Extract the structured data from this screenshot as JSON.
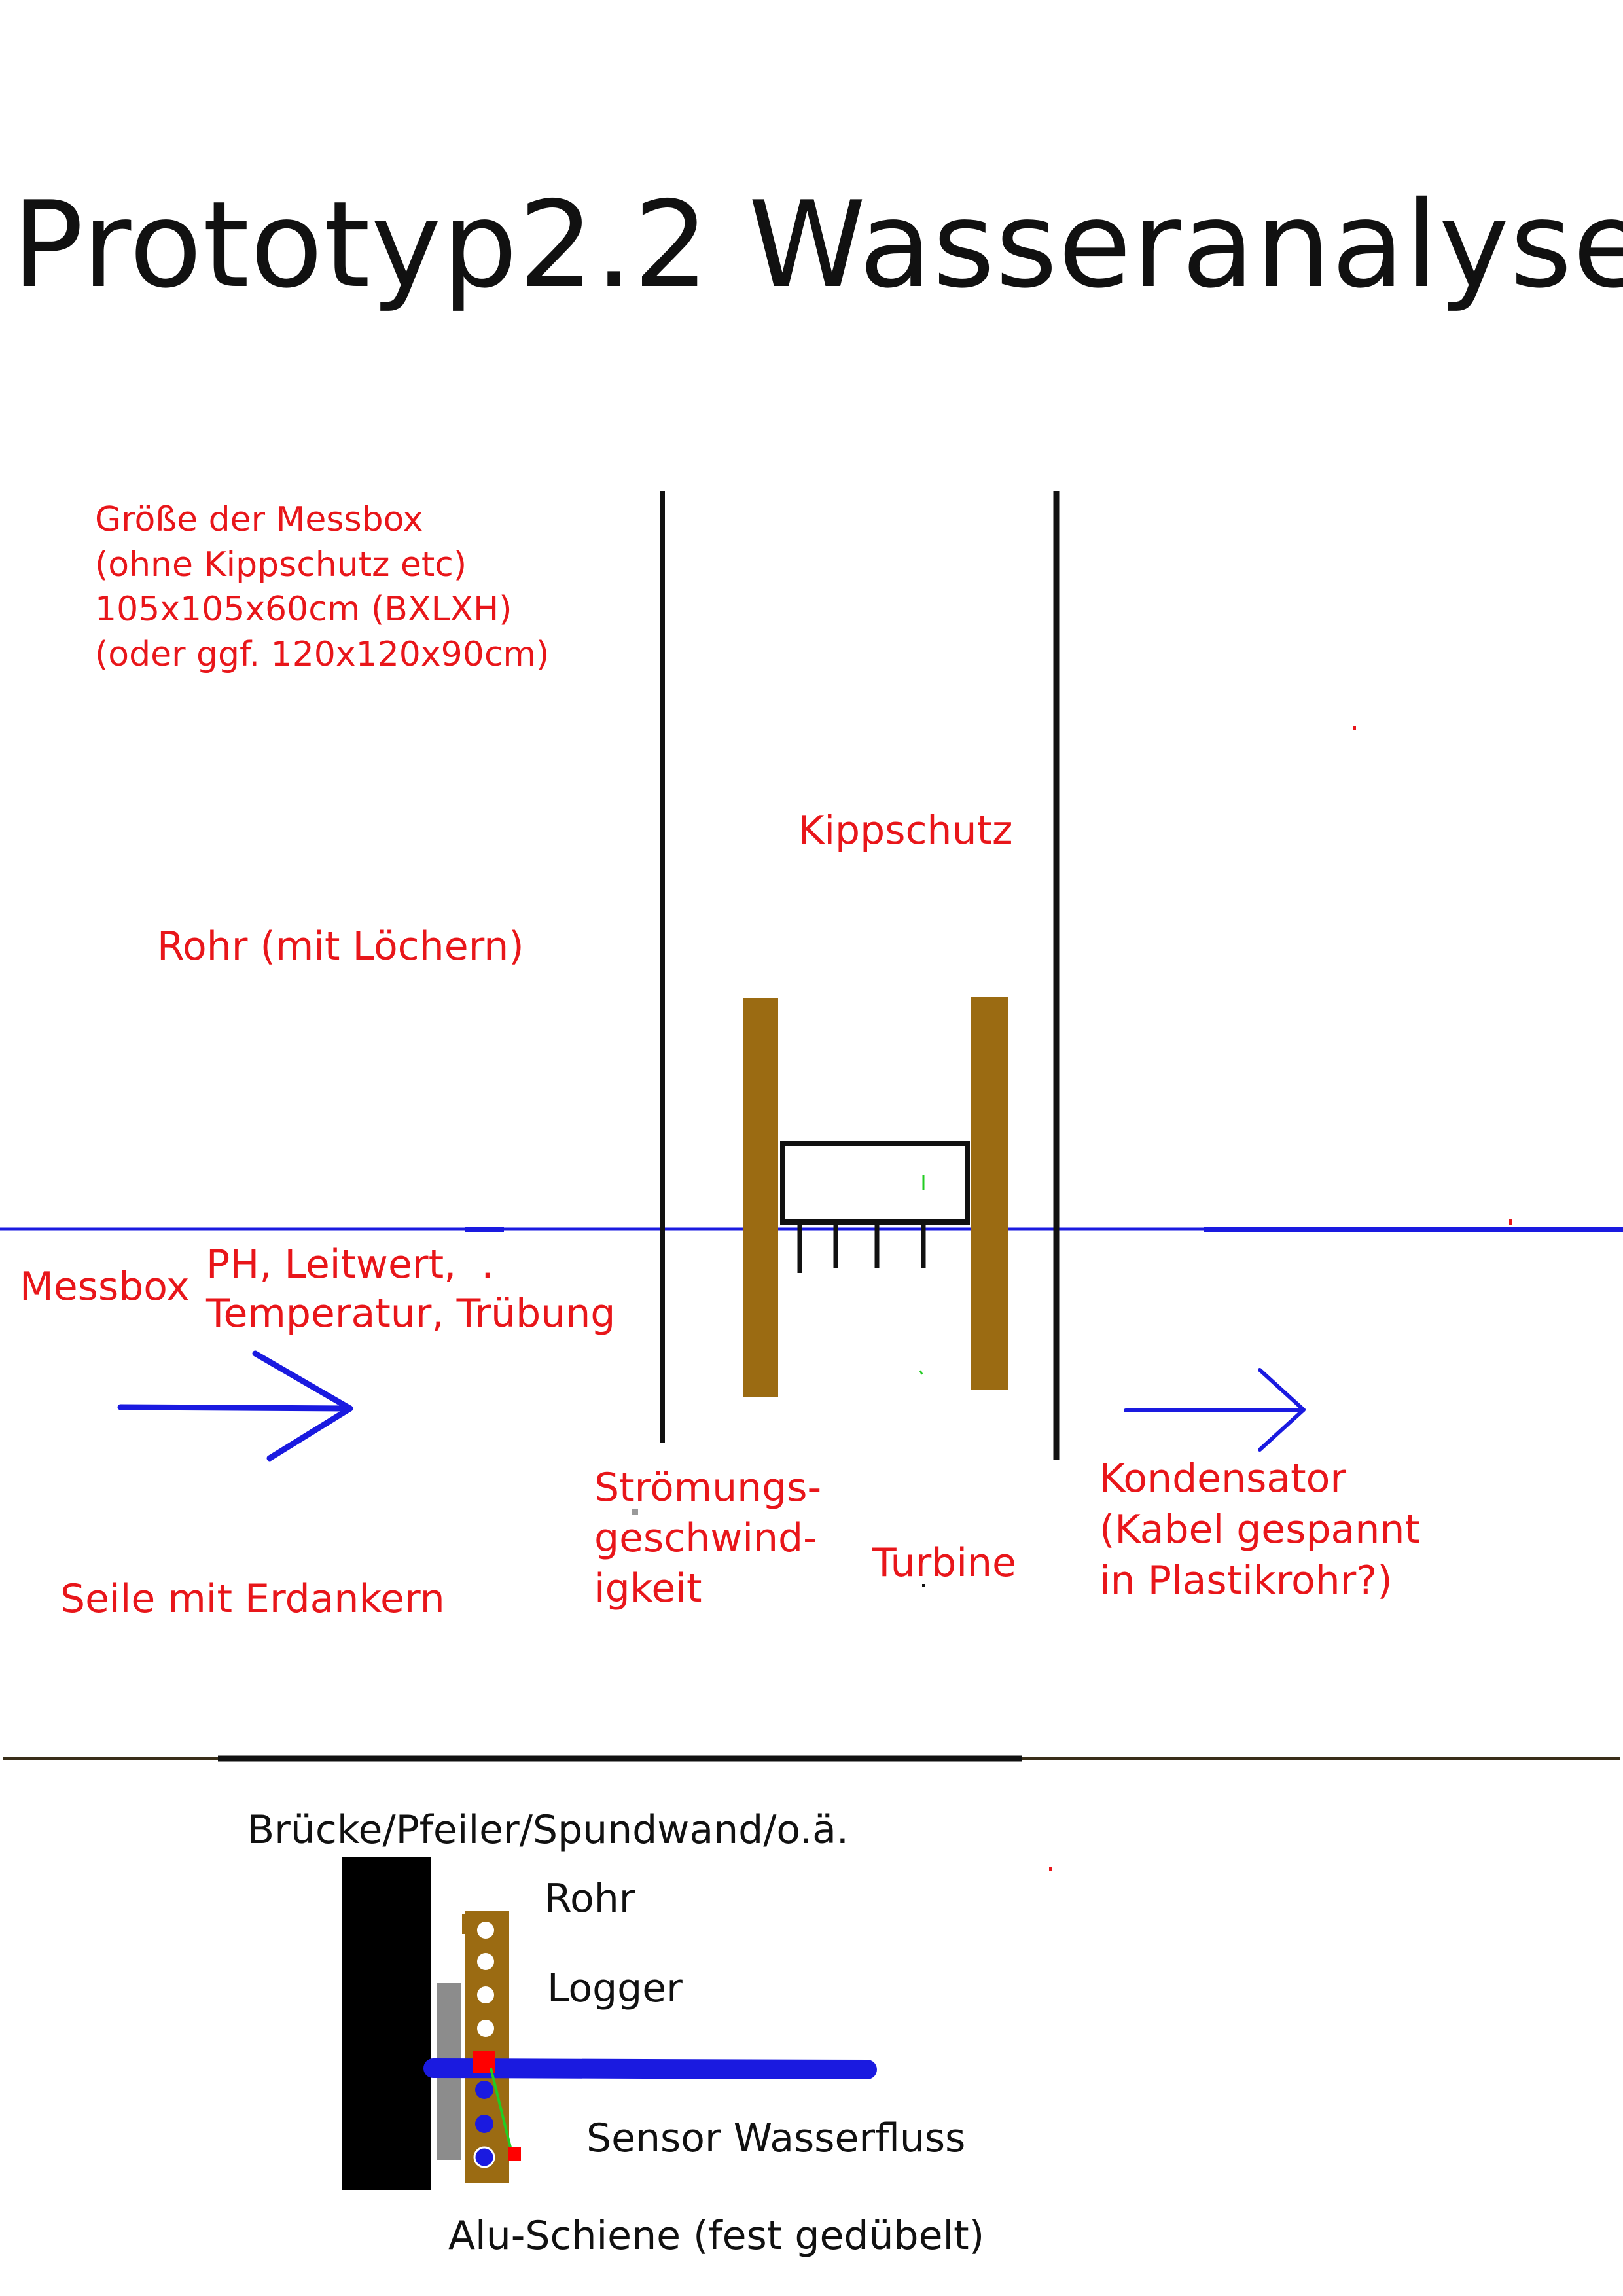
{
  "title": "Prototyp2.2 Wasseranalyse",
  "colors": {
    "label_red": "#e8161a",
    "water_blue": "#1a1ae0",
    "pipe_brown": "#9b6b12",
    "black": "#111111",
    "rail_grey": "#8c8c8c",
    "ground_line": "#3a2f1a",
    "sensor_red": "#ff0000",
    "wire_green": "#22cc22"
  },
  "labels": {
    "messbox_size": "Größe der Messbox\n(ohne Kippschutz etc)\n105x105x60cm (BXLXH)\n(oder ggf. 120x120x90cm)",
    "kippschutz": "Kippschutz",
    "rohr_mit_loechern": "Rohr (mit Löchern)",
    "messbox": "Messbox",
    "sensors": "PH, Leitwert,  .\nTemperatur, Trübung",
    "stroemung": "Strömungs-\ngeschwind-\nigkeit",
    "turbine": "Turbine",
    "kondensator": "Kondensator\n(Kabel gespannt\nin Plastikrohr?)",
    "seile": "Seile mit Erdankern",
    "bruecke": "Brücke/Pfeiler/Spundwand/o.ä.",
    "rohr": "Rohr",
    "logger": "Logger",
    "sensor_wasserfluss": "Sensor Wasserfluss",
    "alu_schiene": "Alu-Schiene (fest gedübelt)"
  },
  "icons": {
    "flow_arrow_left": "arrow-right-icon",
    "flow_arrow_right": "arrow-right-icon"
  }
}
